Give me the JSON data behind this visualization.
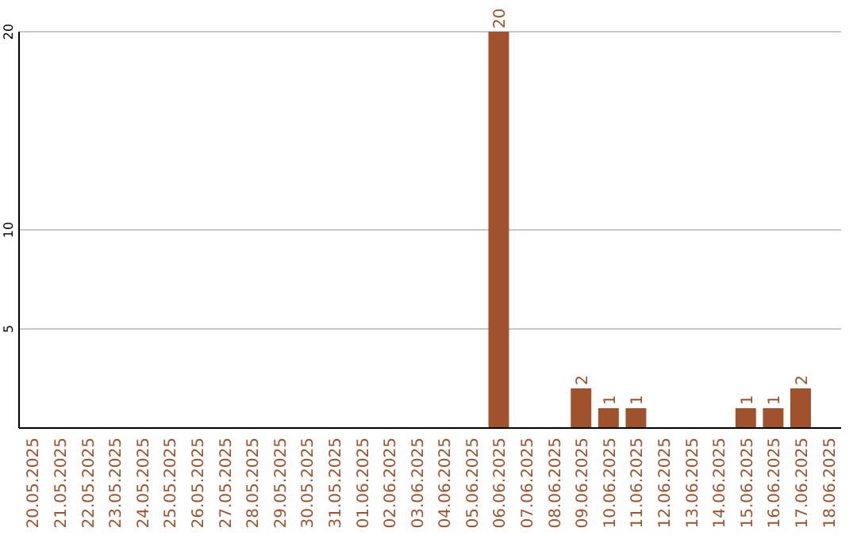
{
  "chart_data": {
    "type": "bar",
    "categories": [
      "20.05.2025",
      "21.05.2025",
      "22.05.2025",
      "23.05.2025",
      "24.05.2025",
      "25.05.2025",
      "26.05.2025",
      "27.05.2025",
      "28.05.2025",
      "29.05.2025",
      "30.05.2025",
      "31.05.2025",
      "01.06.2025",
      "02.06.2025",
      "03.06.2025",
      "04.06.2025",
      "05.06.2025",
      "06.06.2025",
      "07.06.2025",
      "08.06.2025",
      "09.06.2025",
      "10.06.2025",
      "11.06.2025",
      "12.06.2025",
      "13.06.2025",
      "14.06.2025",
      "15.06.2025",
      "16.06.2025",
      "17.06.2025",
      "18.06.2025"
    ],
    "values": [
      0,
      0,
      0,
      0,
      0,
      0,
      0,
      0,
      0,
      0,
      0,
      0,
      0,
      0,
      0,
      0,
      0,
      20,
      0,
      0,
      2,
      1,
      1,
      0,
      0,
      0,
      1,
      1,
      2,
      0
    ],
    "value_labels": [
      null,
      null,
      null,
      null,
      null,
      null,
      null,
      null,
      null,
      null,
      null,
      null,
      null,
      null,
      null,
      null,
      null,
      "20",
      null,
      null,
      "2",
      "1",
      "1",
      null,
      null,
      null,
      "1",
      "1",
      "2",
      null
    ],
    "color": "#a0522d",
    "ylim": [
      0,
      20
    ],
    "yticks": [
      5,
      10,
      20
    ],
    "grid": "y"
  }
}
